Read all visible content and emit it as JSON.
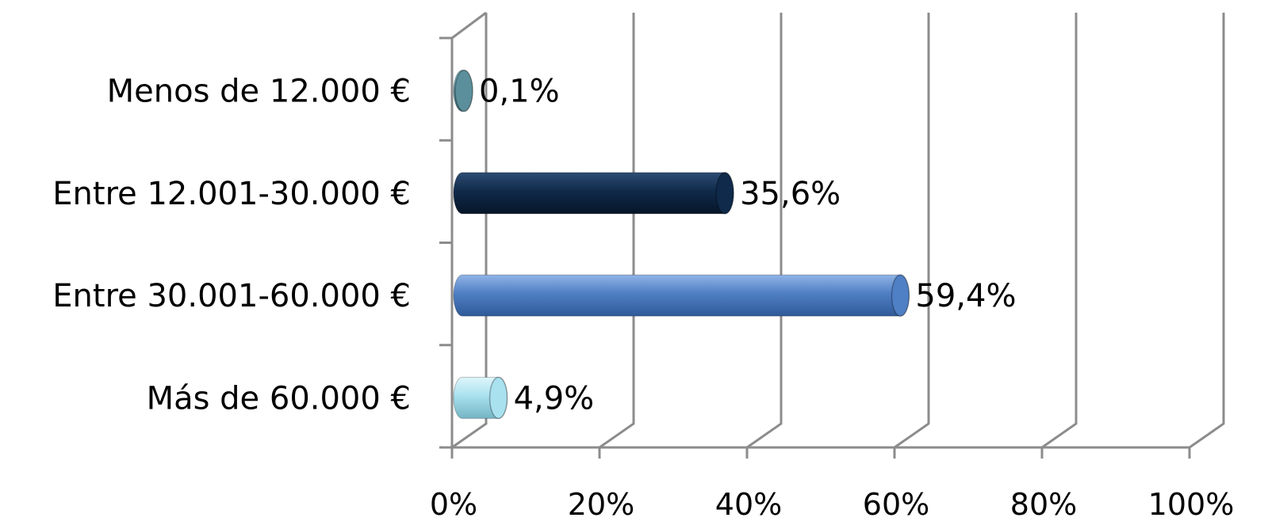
{
  "chart_data": {
    "type": "bar",
    "orientation": "horizontal",
    "categories": [
      "Menos de 12.000 €",
      "Entre 12.001-30.000 €",
      "Entre 30.001-60.000 €",
      "Más de 60.000 €"
    ],
    "values": [
      0.1,
      35.6,
      59.4,
      4.9
    ],
    "data_labels": [
      "0,1%",
      "35,6%",
      "59,4%",
      "4,9%"
    ],
    "bar_colors": [
      "#5b8f9c",
      "#0f2a4a",
      "#4f7fc4",
      "#a9e1ef"
    ],
    "xlim": [
      0,
      100
    ],
    "x_ticks": [
      0,
      20,
      40,
      60,
      80,
      100
    ],
    "x_tick_labels": [
      "0%",
      "20%",
      "40%",
      "60%",
      "80%",
      "100%"
    ],
    "grid": true,
    "legend": "none",
    "style": "3d-cylinder"
  }
}
